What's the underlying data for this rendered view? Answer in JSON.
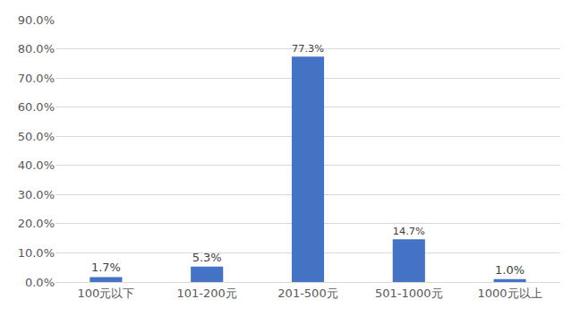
{
  "chart_data": {
    "type": "bar",
    "categories": [
      "100元以下",
      "101-200元",
      "201-500元",
      "501-1000元",
      "1000元以上"
    ],
    "values": [
      1.7,
      5.3,
      77.3,
      14.7,
      1.0
    ],
    "value_labels": [
      "1.7%",
      "5.3%",
      "77.3%",
      "14.7%",
      "1.0%"
    ],
    "data_labels": true,
    "color": "#4472c4",
    "ylim": [
      0,
      90
    ],
    "yticks": [
      {
        "value": 0,
        "label": "0.0%"
      },
      {
        "value": 10,
        "label": "10.0%"
      },
      {
        "value": 20,
        "label": "20.0%"
      },
      {
        "value": 30,
        "label": "30.0%"
      },
      {
        "value": 40,
        "label": "40.0%"
      },
      {
        "value": 50,
        "label": "50.0%"
      },
      {
        "value": 60,
        "label": "60.0%"
      },
      {
        "value": 70,
        "label": "70.0%"
      },
      {
        "value": 80,
        "label": "80.0%"
      },
      {
        "value": 90,
        "label": "90.0%"
      }
    ],
    "grid": true
  }
}
